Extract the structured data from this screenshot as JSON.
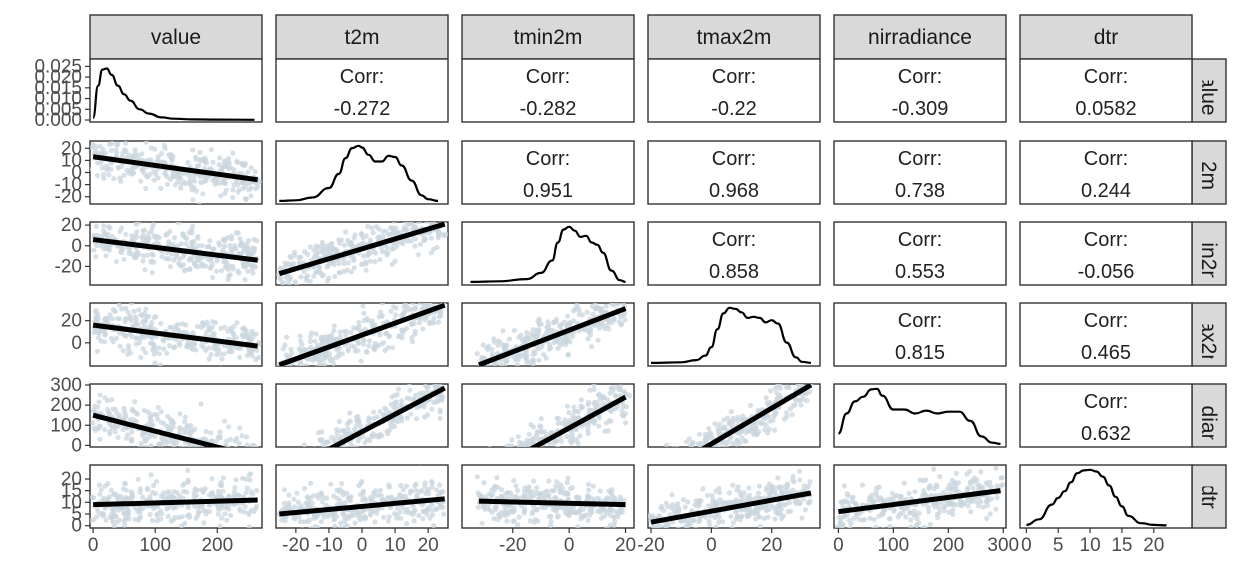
{
  "chart_data": {
    "type": "scatter",
    "title": "",
    "variables": [
      "value",
      "t2m",
      "tmin2m",
      "tmax2m",
      "nirradiance",
      "dtr"
    ],
    "ranges": {
      "value": [
        -5,
        272
      ],
      "t2m": [
        -26,
        26
      ],
      "tmin2m": [
        -38,
        23
      ],
      "tmax2m": [
        -21,
        36
      ],
      "nirradiance": [
        -8,
        305
      ],
      "dtr": [
        -1,
        26
      ]
    },
    "x_ticks": {
      "value": [
        0,
        100,
        200
      ],
      "t2m": [
        -20,
        -10,
        0,
        10,
        20
      ],
      "tmin2m": [
        -20,
        0,
        20
      ],
      "tmax2m": [
        -20,
        0,
        20
      ],
      "nirradiance": [
        0,
        100,
        200,
        300
      ],
      "dtr": [
        0,
        5,
        10,
        15,
        20
      ]
    },
    "y_ticks": {
      "value": [
        0.0,
        0.005,
        0.01,
        0.015,
        0.02,
        0.025
      ],
      "t2m": [
        -20,
        -10,
        0,
        10,
        20
      ],
      "tmin2m": [
        -20,
        0,
        20
      ],
      "tmax2m": [
        0,
        20
      ],
      "nirradiance": [
        0,
        100,
        200,
        300
      ],
      "dtr": [
        0,
        5,
        10,
        15,
        20
      ]
    },
    "y_tick_labels": {
      "value": [
        "0.000",
        "0.005",
        "0.010",
        "0.015",
        "0.020",
        "0.025"
      ],
      "t2m": [
        "-20",
        "-10",
        "0",
        "10",
        "20"
      ],
      "tmin2m": [
        "-20",
        "0",
        "20"
      ],
      "tmax2m": [
        "0",
        "20"
      ],
      "nirradiance": [
        "0",
        "100",
        "200",
        "300"
      ],
      "dtr": [
        "0",
        "5",
        "10",
        "15",
        "20"
      ]
    },
    "correlation_label": "Corr:",
    "correlations": [
      {
        "row": "value",
        "col": "t2m",
        "label": "-0.272"
      },
      {
        "row": "value",
        "col": "tmin2m",
        "label": "-0.282"
      },
      {
        "row": "value",
        "col": "tmax2m",
        "label": "-0.22"
      },
      {
        "row": "value",
        "col": "nirradiance",
        "label": "-0.309"
      },
      {
        "row": "value",
        "col": "dtr",
        "label": "0.0582"
      },
      {
        "row": "t2m",
        "col": "tmin2m",
        "label": "0.951"
      },
      {
        "row": "t2m",
        "col": "tmax2m",
        "label": "0.968"
      },
      {
        "row": "t2m",
        "col": "nirradiance",
        "label": "0.738"
      },
      {
        "row": "t2m",
        "col": "dtr",
        "label": "0.244"
      },
      {
        "row": "tmin2m",
        "col": "tmax2m",
        "label": "0.858"
      },
      {
        "row": "tmin2m",
        "col": "nirradiance",
        "label": "0.553"
      },
      {
        "row": "tmin2m",
        "col": "dtr",
        "label": "-0.056"
      },
      {
        "row": "tmax2m",
        "col": "nirradiance",
        "label": "0.815"
      },
      {
        "row": "tmax2m",
        "col": "dtr",
        "label": "0.465"
      },
      {
        "row": "nirradiance",
        "col": "dtr",
        "label": "0.632"
      }
    ],
    "density_curves": {
      "value": {
        "x": [
          0,
          8,
          15,
          22,
          30,
          40,
          50,
          60,
          75,
          90,
          110,
          130,
          160,
          200,
          260
        ],
        "y": [
          0.001,
          0.016,
          0.0235,
          0.024,
          0.021,
          0.016,
          0.012,
          0.009,
          0.005,
          0.003,
          0.0012,
          0.0006,
          0.0003,
          0.0002,
          0.0001
        ]
      },
      "t2m": {
        "x": [
          -25,
          -20,
          -15,
          -10,
          -7,
          -5,
          -3,
          -1,
          0,
          2,
          4,
          6,
          8,
          10,
          12,
          15,
          18,
          20,
          23
        ],
        "y": [
          0.02,
          0.03,
          0.08,
          0.25,
          0.5,
          0.78,
          0.96,
          1.0,
          0.97,
          0.84,
          0.72,
          0.72,
          0.82,
          0.8,
          0.65,
          0.38,
          0.12,
          0.05,
          0.02
        ]
      },
      "tmin2m": {
        "x": [
          -35,
          -25,
          -15,
          -10,
          -6,
          -4,
          -2,
          0,
          2,
          4,
          6,
          8,
          10,
          12,
          15,
          18,
          20
        ],
        "y": [
          0.02,
          0.03,
          0.07,
          0.18,
          0.4,
          0.72,
          0.95,
          1.0,
          0.93,
          0.82,
          0.84,
          0.72,
          0.68,
          0.54,
          0.22,
          0.05,
          0.02
        ]
      },
      "tmax2m": {
        "x": [
          -20,
          -10,
          -5,
          -2,
          0,
          2,
          4,
          6,
          8,
          10,
          12,
          14,
          16,
          18,
          20,
          22,
          25,
          28,
          30,
          33
        ],
        "y": [
          0.02,
          0.03,
          0.07,
          0.15,
          0.3,
          0.62,
          0.9,
          1.0,
          0.98,
          0.92,
          0.82,
          0.84,
          0.82,
          0.74,
          0.78,
          0.72,
          0.38,
          0.12,
          0.04,
          0.02
        ]
      },
      "nirradiance": {
        "x": [
          0,
          15,
          30,
          45,
          60,
          70,
          80,
          100,
          120,
          140,
          160,
          180,
          200,
          220,
          240,
          260,
          280,
          295
        ],
        "y": [
          0.2,
          0.55,
          0.76,
          0.84,
          0.97,
          0.98,
          0.86,
          0.62,
          0.62,
          0.55,
          0.6,
          0.55,
          0.58,
          0.58,
          0.42,
          0.15,
          0.04,
          0.02
        ]
      },
      "dtr": {
        "x": [
          0,
          2,
          4,
          5,
          6,
          7,
          8,
          9,
          10,
          11,
          12,
          13,
          14,
          15,
          16,
          18,
          20,
          22
        ],
        "y": [
          0.02,
          0.12,
          0.38,
          0.5,
          0.62,
          0.78,
          0.94,
          0.99,
          1.0,
          0.97,
          0.88,
          0.72,
          0.52,
          0.35,
          0.18,
          0.05,
          0.02,
          0.01
        ]
      }
    },
    "regression_lines": [
      {
        "row": "t2m",
        "col": "value",
        "points": [
          [
            0,
            13
          ],
          [
            265,
            -6
          ]
        ]
      },
      {
        "row": "tmin2m",
        "col": "value",
        "points": [
          [
            0,
            6
          ],
          [
            265,
            -14
          ]
        ]
      },
      {
        "row": "tmin2m",
        "col": "t2m",
        "points": [
          [
            -25,
            -27
          ],
          [
            25,
            21
          ]
        ]
      },
      {
        "row": "tmax2m",
        "col": "value",
        "points": [
          [
            0,
            16
          ],
          [
            265,
            -3
          ]
        ]
      },
      {
        "row": "tmax2m",
        "col": "t2m",
        "points": [
          [
            -25,
            -20
          ],
          [
            25,
            34
          ]
        ]
      },
      {
        "row": "tmax2m",
        "col": "tmin2m",
        "points": [
          [
            -32,
            -20
          ],
          [
            20,
            31
          ]
        ]
      },
      {
        "row": "nirradiance",
        "col": "value",
        "points": [
          [
            0,
            150
          ],
          [
            265,
            -60
          ]
        ]
      },
      {
        "row": "nirradiance",
        "col": "t2m",
        "points": [
          [
            -25,
            -150
          ],
          [
            25,
            285
          ]
        ]
      },
      {
        "row": "nirradiance",
        "col": "tmin2m",
        "points": [
          [
            -32,
            -160
          ],
          [
            20,
            240
          ]
        ]
      },
      {
        "row": "nirradiance",
        "col": "tmax2m",
        "points": [
          [
            -20,
            -170
          ],
          [
            33,
            300
          ]
        ]
      },
      {
        "row": "dtr",
        "col": "value",
        "points": [
          [
            0,
            9
          ],
          [
            265,
            11
          ]
        ]
      },
      {
        "row": "dtr",
        "col": "t2m",
        "points": [
          [
            -25,
            5
          ],
          [
            25,
            11.5
          ]
        ]
      },
      {
        "row": "dtr",
        "col": "tmin2m",
        "points": [
          [
            -32,
            10.5
          ],
          [
            20,
            9
          ]
        ]
      },
      {
        "row": "dtr",
        "col": "tmax2m",
        "points": [
          [
            -20,
            1.5
          ],
          [
            33,
            14
          ]
        ]
      },
      {
        "row": "dtr",
        "col": "nirradiance",
        "points": [
          [
            0,
            6
          ],
          [
            295,
            15
          ]
        ]
      }
    ],
    "colors": {
      "points": "#c9d6dd",
      "line": "#000000",
      "strip": "#d9d9d9",
      "frame": "#333333"
    }
  }
}
